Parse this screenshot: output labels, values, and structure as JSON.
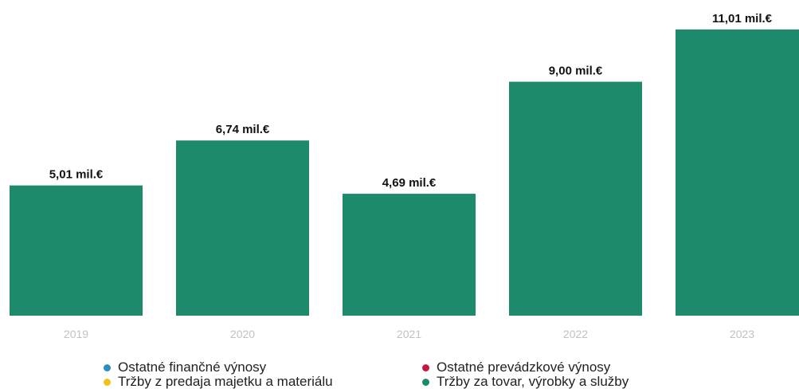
{
  "chart_data": {
    "type": "bar",
    "title": "",
    "xlabel": "",
    "ylabel": "",
    "categories": [
      "2019",
      "2020",
      "2021",
      "2022",
      "2023"
    ],
    "series": [
      {
        "name": "Tržby za tovar, výrobky a služby",
        "values": [
          5.01,
          6.74,
          4.69,
          9.0,
          11.01
        ],
        "color": "#1e8a6c"
      }
    ],
    "data_labels": [
      "5,01 mil.€",
      "6,74 mil.€",
      "4,69 mil.€",
      "9,00 mil.€",
      "11,01 mil.€"
    ],
    "ylim": [
      0,
      11.01
    ],
    "grid": false,
    "legend_position": "bottom"
  },
  "legend": {
    "items": [
      {
        "label": "Ostatné finančné výnosy",
        "color": "#2a8fc4"
      },
      {
        "label": "Ostatné prevádzkové výnosy",
        "color": "#c8163f"
      },
      {
        "label": "Tržby z predaja majetku a materiálu",
        "color": "#f2c21b"
      },
      {
        "label": "Tržby za tovar, výrobky a služby",
        "color": "#1e8a6c"
      }
    ]
  }
}
